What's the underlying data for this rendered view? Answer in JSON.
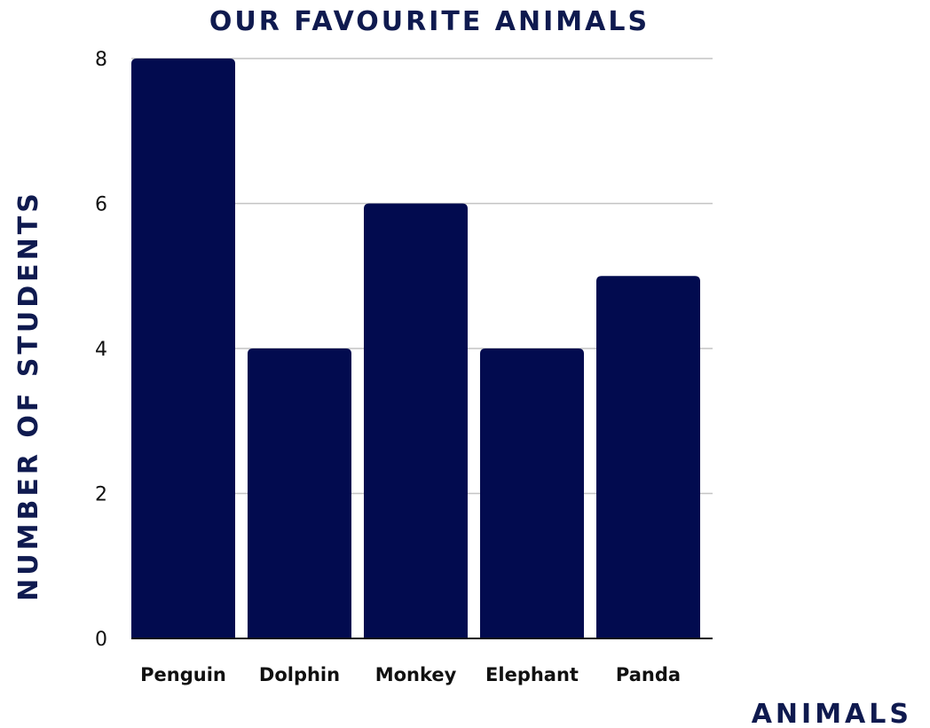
{
  "chart_data": {
    "type": "bar",
    "title": "OUR FAVOURITE ANIMALS",
    "xlabel": "ANIMALS",
    "ylabel": "NUMBER OF STUDENTS",
    "categories": [
      "Penguin",
      "Dolphin",
      "Monkey",
      "Elephant",
      "Panda"
    ],
    "values": [
      8,
      4,
      6,
      4,
      5
    ],
    "ylim": [
      0,
      8
    ],
    "yticks": [
      "0",
      "2",
      "4",
      "6",
      "8"
    ],
    "grid": true,
    "legend": "none",
    "colors": {
      "bar": "#020B4F",
      "text": "#0F1A4F",
      "grid": "#C4C4C4",
      "axis": "#111111"
    }
  }
}
